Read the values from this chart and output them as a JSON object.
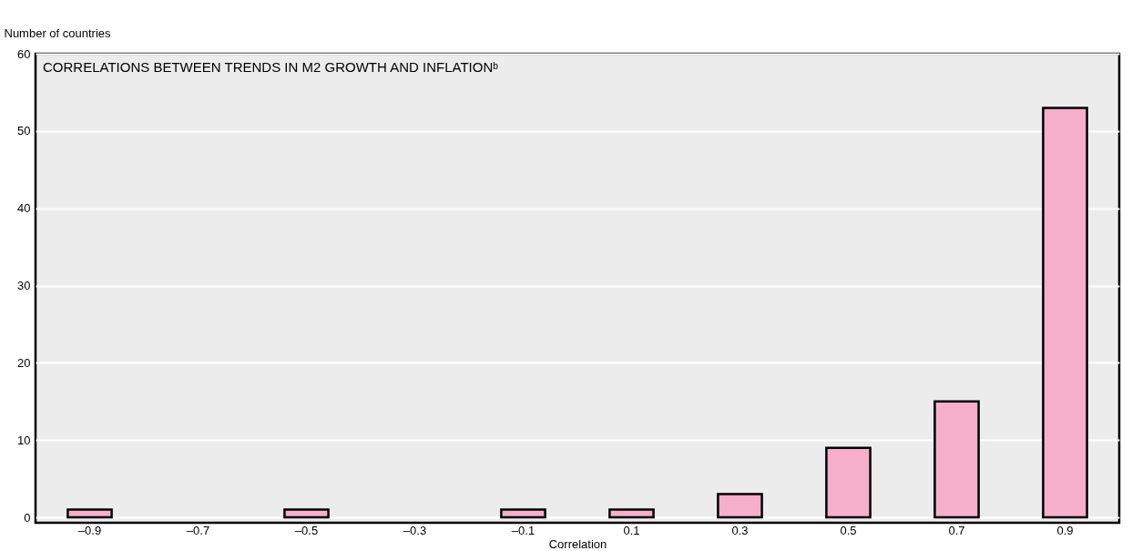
{
  "chart_data": {
    "type": "bar",
    "title": "CORRELATIONS BETWEEN TRENDS IN M2 GROWTH AND INFLATIONᵇ",
    "xlabel": "Correlation",
    "ylabel": "Number of countries",
    "categories": [
      "–0.9",
      "–0.7",
      "–0.5",
      "–0.3",
      "–0.1",
      "0.1",
      "0.3",
      "0.5",
      "0.7",
      "0.9"
    ],
    "values": [
      1,
      null,
      1,
      null,
      1,
      1,
      3,
      9,
      15,
      53
    ],
    "color": "#f5afc8",
    "ylim": [
      -0.7,
      60
    ],
    "yticks": [
      0,
      10,
      20,
      30,
      40,
      50,
      60
    ],
    "grid": "y"
  }
}
